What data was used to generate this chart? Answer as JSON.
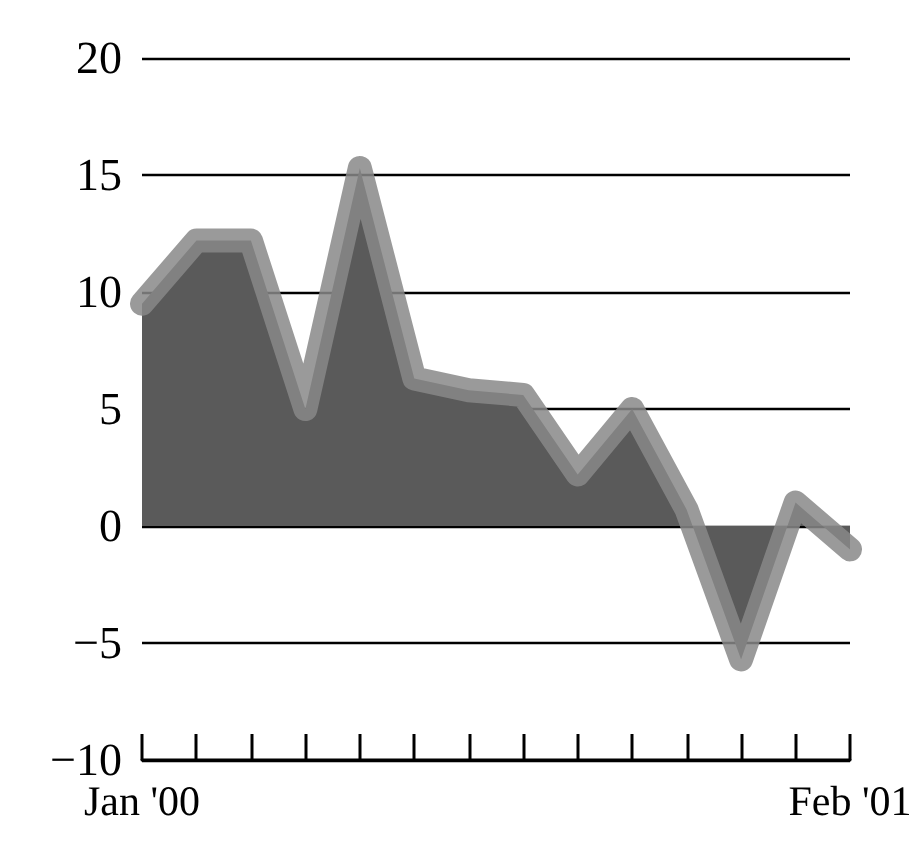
{
  "chart_data": {
    "type": "area",
    "categories": [
      "Jan '00",
      null,
      null,
      null,
      null,
      null,
      null,
      null,
      null,
      null,
      null,
      null,
      null,
      "Feb '01"
    ],
    "series": [
      {
        "color": "#5a5a5a",
        "values": [
          9.5,
          12.2,
          12.2,
          5,
          15.3,
          6.3,
          5.8,
          5.6,
          2.2,
          5,
          0.7,
          -5.7,
          1,
          -1
        ]
      }
    ],
    "ylim": [
      -10,
      20
    ],
    "yticks": [
      20,
      15,
      10,
      5,
      0,
      {
        "value": -5,
        "label": "−5"
      },
      {
        "value": -10,
        "label": "−10"
      }
    ],
    "grid": "y",
    "marker": "none"
  }
}
